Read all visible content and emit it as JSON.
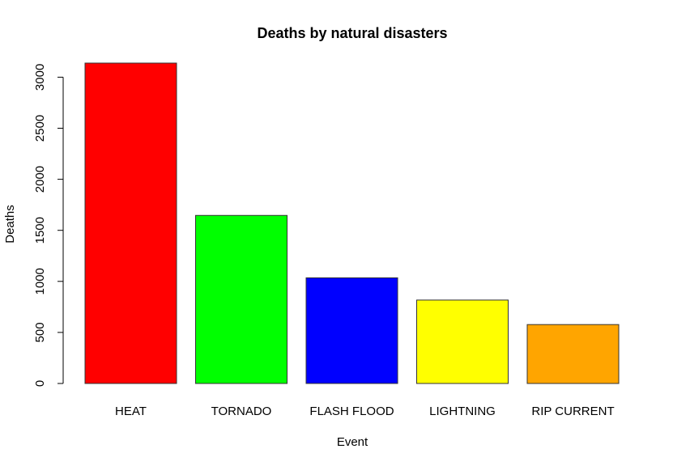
{
  "chart_data": {
    "type": "bar",
    "title": "Deaths by natural disasters",
    "xlabel": "Event",
    "ylabel": "Deaths",
    "categories": [
      "HEAT",
      "TORNADO",
      "FLASH FLOOD",
      "LIGHTNING",
      "RIP CURRENT"
    ],
    "values": [
      3138,
      1646,
      1035,
      817,
      577
    ],
    "colors": [
      "#ff0000",
      "#00ff00",
      "#0000ff",
      "#ffff00",
      "#ffa500"
    ],
    "yticks": [
      0,
      500,
      1000,
      1500,
      2000,
      2500,
      3000
    ],
    "ylim": [
      0,
      3138
    ],
    "grid": false,
    "legend": "none"
  }
}
